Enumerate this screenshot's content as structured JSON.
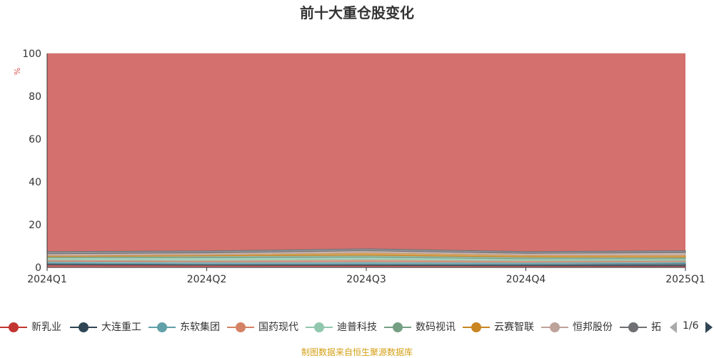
{
  "chart_data": {
    "type": "area",
    "stacked": true,
    "title": "前十大重仓股变化",
    "ylabel": "%",
    "ylim": [
      0,
      100
    ],
    "yticks": [
      0,
      20,
      40,
      60,
      80,
      100
    ],
    "grid": true,
    "legend_position": "bottom",
    "x": [
      "2024Q1",
      "2024Q2",
      "2024Q3",
      "2024Q4",
      "2025Q1"
    ],
    "series": [
      {
        "name": "新乳业",
        "color": "#c23531",
        "values": [
          1.2,
          1.0,
          0.9,
          0.8,
          0.7
        ]
      },
      {
        "name": "大连重工",
        "color": "#2f4554",
        "values": [
          0.8,
          0.6,
          0.7,
          0.8,
          1.2
        ]
      },
      {
        "name": "东软集团",
        "color": "#61a0a8",
        "values": [
          0.9,
          1.0,
          1.1,
          0.9,
          0.8
        ]
      },
      {
        "name": "国药现代",
        "color": "#d48265",
        "values": [
          0.7,
          0.7,
          1.0,
          0.7,
          0.6
        ]
      },
      {
        "name": "迪普科技",
        "color": "#91c7ae",
        "values": [
          0.9,
          1.2,
          1.0,
          0.8,
          0.7
        ]
      },
      {
        "name": "数码视讯",
        "color": "#749f83",
        "values": [
          0.6,
          0.9,
          1.0,
          0.9,
          0.8
        ]
      },
      {
        "name": "云赛智联",
        "color": "#ca8622",
        "values": [
          0.5,
          0.6,
          1.2,
          0.9,
          1.0
        ]
      },
      {
        "name": "恒邦股份",
        "color": "#bda29a",
        "values": [
          0.8,
          0.8,
          0.9,
          0.8,
          1.1
        ]
      },
      {
        "name": "拓",
        "color": "#6e7074",
        "values": [
          1.0,
          0.9,
          0.9,
          0.8,
          0.9
        ]
      }
    ],
    "remainder": {
      "color": "#d4706d",
      "total": 100
    }
  },
  "legend": {
    "page_label": "1/6"
  },
  "source_note": "制图数据来自恒生聚源数据库"
}
